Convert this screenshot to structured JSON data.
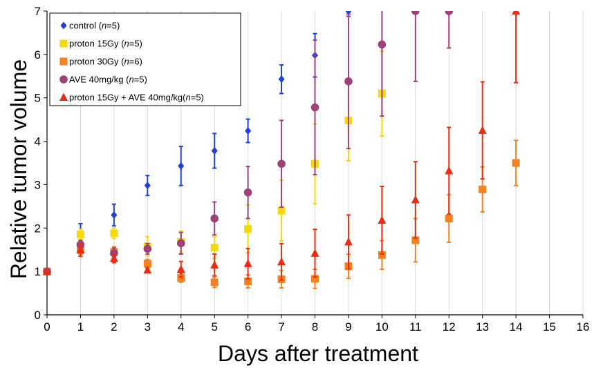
{
  "chart_data": {
    "type": "scatter",
    "xlabel": "Days after treatment",
    "ylabel": "Relative tumor volume",
    "xlim": [
      0,
      16
    ],
    "ylim": [
      0,
      7
    ],
    "xticks": [
      0,
      1,
      2,
      3,
      4,
      5,
      6,
      7,
      8,
      9,
      10,
      11,
      12,
      13,
      14,
      15,
      16
    ],
    "yticks": [
      0,
      1,
      2,
      3,
      4,
      5,
      6,
      7
    ],
    "grid": "vertical",
    "legend_position": "top-left",
    "series": [
      {
        "name": "control",
        "legend_label": "control (n=5)",
        "legend_parts": [
          "control (",
          "n",
          "=5)"
        ],
        "color": "#1f3fe0",
        "marker": "diamond",
        "points": [
          {
            "x": 0,
            "y": 1.0,
            "err": 0.0
          },
          {
            "x": 1,
            "y": 1.85,
            "err": 0.25
          },
          {
            "x": 2,
            "y": 2.3,
            "err": 0.25
          },
          {
            "x": 3,
            "y": 2.98,
            "err": 0.23
          },
          {
            "x": 4,
            "y": 3.43,
            "err": 0.45
          },
          {
            "x": 5,
            "y": 3.78,
            "err": 0.4
          },
          {
            "x": 6,
            "y": 4.24,
            "err": 0.27
          },
          {
            "x": 7,
            "y": 5.43,
            "err": 0.33
          },
          {
            "x": 8,
            "y": 5.98,
            "err": 0.5
          },
          {
            "x": 9,
            "y": 7.0,
            "err": 0.12
          }
        ]
      },
      {
        "name": "proton 15Gy",
        "legend_label": "proton 15Gy (n=5)",
        "legend_parts": [
          "proton 15Gy (",
          "n",
          "=5)"
        ],
        "color": "#f5d90a",
        "marker": "square",
        "points": [
          {
            "x": 0,
            "y": 1.0,
            "err": 0.0
          },
          {
            "x": 1,
            "y": 1.85,
            "err": 0.12
          },
          {
            "x": 2,
            "y": 1.88,
            "err": 0.12
          },
          {
            "x": 3,
            "y": 1.58,
            "err": 0.22
          },
          {
            "x": 4,
            "y": 1.68,
            "err": 0.25
          },
          {
            "x": 5,
            "y": 1.55,
            "err": 0.25
          },
          {
            "x": 6,
            "y": 1.98,
            "err": 0.55
          },
          {
            "x": 7,
            "y": 2.4,
            "err": 0.7
          },
          {
            "x": 8,
            "y": 3.48,
            "err": 0.92
          },
          {
            "x": 9,
            "y": 4.48,
            "err": 0.93
          },
          {
            "x": 10,
            "y": 5.1,
            "err": 0.98
          }
        ]
      },
      {
        "name": "proton 30Gy",
        "legend_label": "proton 30Gy (n=6)",
        "legend_parts": [
          "proton 30Gy (",
          "n",
          "=6)"
        ],
        "color": "#f5821f",
        "marker": "square",
        "points": [
          {
            "x": 0,
            "y": 1.0,
            "err": 0.0
          },
          {
            "x": 1,
            "y": 1.5,
            "err": 0.1
          },
          {
            "x": 2,
            "y": 1.45,
            "err": 0.12
          },
          {
            "x": 3,
            "y": 1.18,
            "err": 0.1
          },
          {
            "x": 4,
            "y": 0.85,
            "err": 0.1
          },
          {
            "x": 5,
            "y": 0.75,
            "err": 0.12
          },
          {
            "x": 6,
            "y": 0.77,
            "err": 0.15
          },
          {
            "x": 7,
            "y": 0.82,
            "err": 0.2
          },
          {
            "x": 8,
            "y": 0.83,
            "err": 0.22
          },
          {
            "x": 9,
            "y": 1.12,
            "err": 0.28
          },
          {
            "x": 10,
            "y": 1.38,
            "err": 0.33
          },
          {
            "x": 11,
            "y": 1.72,
            "err": 0.5
          },
          {
            "x": 12,
            "y": 2.22,
            "err": 0.55
          },
          {
            "x": 13,
            "y": 2.89,
            "err": 0.52
          },
          {
            "x": 14,
            "y": 3.5,
            "err": 0.52
          }
        ]
      },
      {
        "name": "AVE 40mg/kg",
        "legend_label": "AVE 40mg/kg (n=5)",
        "legend_parts": [
          "AVE 40mg/kg (",
          "n",
          "=5)"
        ],
        "color": "#a0407a",
        "marker": "circle",
        "points": [
          {
            "x": 0,
            "y": 1.0,
            "err": 0.0
          },
          {
            "x": 1,
            "y": 1.62,
            "err": 0.1
          },
          {
            "x": 2,
            "y": 1.42,
            "err": 0.12
          },
          {
            "x": 3,
            "y": 1.52,
            "err": 0.12
          },
          {
            "x": 4,
            "y": 1.65,
            "err": 0.25
          },
          {
            "x": 5,
            "y": 2.22,
            "err": 0.38
          },
          {
            "x": 6,
            "y": 2.82,
            "err": 0.6
          },
          {
            "x": 7,
            "y": 3.48,
            "err": 1.0
          },
          {
            "x": 8,
            "y": 4.78,
            "err": 1.55
          },
          {
            "x": 9,
            "y": 5.38,
            "err": 1.55
          },
          {
            "x": 10,
            "y": 6.23,
            "err": 1.65
          },
          {
            "x": 11,
            "y": 7.0,
            "err": 1.62
          },
          {
            "x": 12,
            "y": 7.0,
            "err": 0.85
          }
        ]
      },
      {
        "name": "proton 15Gy + AVE 40mg/kg",
        "legend_label": "proton 15Gy + AVE 40mg/kg(n=5)",
        "legend_parts": [
          "proton 15Gy + AVE 40mg/kg(",
          "n",
          "=5)"
        ],
        "color": "#f02a10",
        "marker": "triangle",
        "points": [
          {
            "x": 0,
            "y": 1.0,
            "err": 0.0
          },
          {
            "x": 1,
            "y": 1.5,
            "err": 0.15
          },
          {
            "x": 2,
            "y": 1.3,
            "err": 0.1
          },
          {
            "x": 3,
            "y": 1.03,
            "err": 0.05
          },
          {
            "x": 4,
            "y": 1.05,
            "err": 0.18
          },
          {
            "x": 5,
            "y": 1.15,
            "err": 0.25
          },
          {
            "x": 6,
            "y": 1.18,
            "err": 0.35
          },
          {
            "x": 7,
            "y": 1.22,
            "err": 0.42
          },
          {
            "x": 8,
            "y": 1.42,
            "err": 0.55
          },
          {
            "x": 9,
            "y": 1.68,
            "err": 0.62
          },
          {
            "x": 10,
            "y": 2.18,
            "err": 0.78
          },
          {
            "x": 11,
            "y": 2.65,
            "err": 0.88
          },
          {
            "x": 12,
            "y": 3.32,
            "err": 1.0
          },
          {
            "x": 13,
            "y": 4.25,
            "err": 1.12
          },
          {
            "x": 14,
            "y": 7.0,
            "err": 1.65
          }
        ]
      }
    ]
  }
}
